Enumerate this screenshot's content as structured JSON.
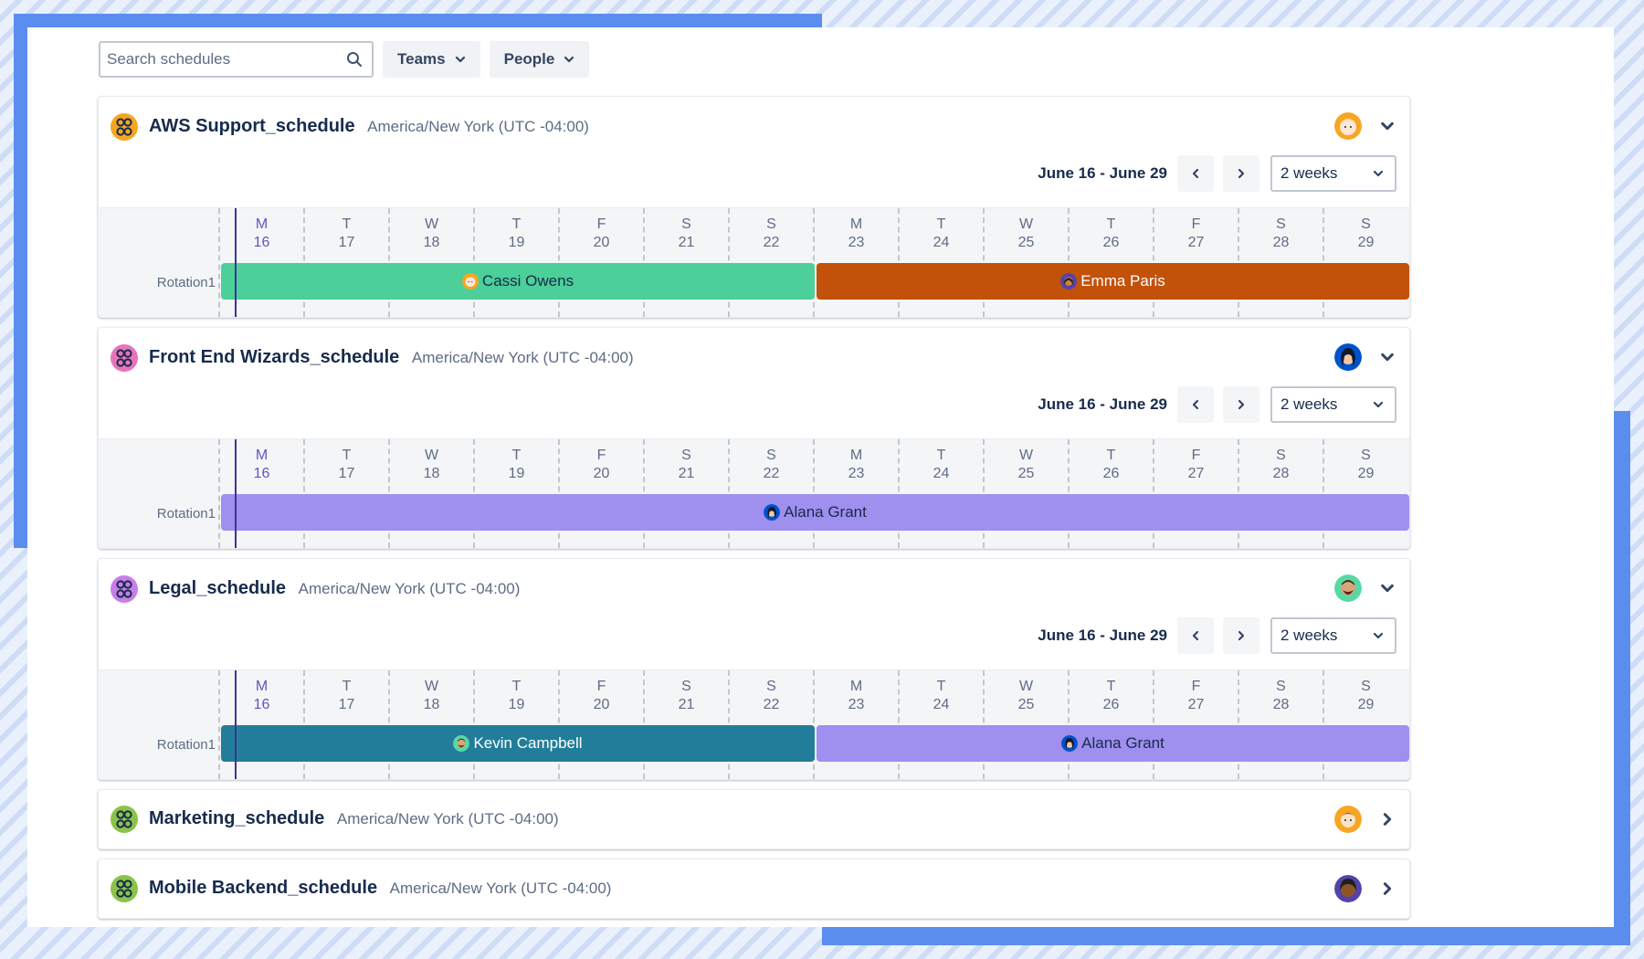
{
  "search": {
    "placeholder": "Search schedules",
    "value": ""
  },
  "filters": {
    "teams_label": "Teams",
    "people_label": "People"
  },
  "days": [
    {
      "d": "M",
      "n": "16"
    },
    {
      "d": "T",
      "n": "17"
    },
    {
      "d": "W",
      "n": "18"
    },
    {
      "d": "T",
      "n": "19"
    },
    {
      "d": "F",
      "n": "20"
    },
    {
      "d": "S",
      "n": "21"
    },
    {
      "d": "S",
      "n": "22"
    },
    {
      "d": "M",
      "n": "23"
    },
    {
      "d": "T",
      "n": "24"
    },
    {
      "d": "W",
      "n": "25"
    },
    {
      "d": "T",
      "n": "26"
    },
    {
      "d": "F",
      "n": "27"
    },
    {
      "d": "S",
      "n": "28"
    },
    {
      "d": "S",
      "n": "29"
    }
  ],
  "colors": {
    "green": "#4ccf98",
    "rust": "#c2510a",
    "lavender": "#9f8fef",
    "teal": "#227d9b",
    "paleteal": "#8eb5c5",
    "orange_icon": "#f5a623",
    "pink_icon": "#e774bb",
    "purple_icon": "#c87ee8",
    "lime_icon": "#8bc34a"
  },
  "schedules": [
    {
      "name": "AWS Support_schedule",
      "timezone": "America/New York (UTC -04:00)",
      "range_label": "June 16 - June 29",
      "period": "2 weeks",
      "rotation_label": "Rotation1",
      "owner_avatar": "avatar-cassi",
      "bars": [
        {
          "person": "Cassi Owens",
          "avatar": "avatar-cassi"
        },
        {
          "person": "Emma Paris",
          "avatar": "avatar-emma"
        }
      ]
    },
    {
      "name": "Front End Wizards_schedule",
      "timezone": "America/New York (UTC -04:00)",
      "range_label": "June 16 - June 29",
      "period": "2 weeks",
      "rotation_label": "Rotation1",
      "owner_avatar": "avatar-alana",
      "bars": [
        {
          "person": "Alana Grant",
          "avatar": "avatar-alana"
        }
      ]
    },
    {
      "name": "Legal_schedule",
      "timezone": "America/New York (UTC -04:00)",
      "range_label": "June 16 - June 29",
      "period": "2 weeks",
      "rotation_label": "Rotation1",
      "owner_avatar": "avatar-kevin",
      "bars": [
        {
          "person": "Kevin Campbell",
          "avatar": "avatar-kevin"
        },
        {
          "person": "Alana Grant",
          "avatar": "avatar-alana"
        }
      ]
    },
    {
      "name": "Marketing_schedule",
      "timezone": "America/New York (UTC -04:00)",
      "owner_avatar": "avatar-marketing"
    },
    {
      "name": "Mobile Backend_schedule",
      "timezone": "America/New York (UTC -04:00)",
      "owner_avatar": "avatar-mobile"
    }
  ]
}
